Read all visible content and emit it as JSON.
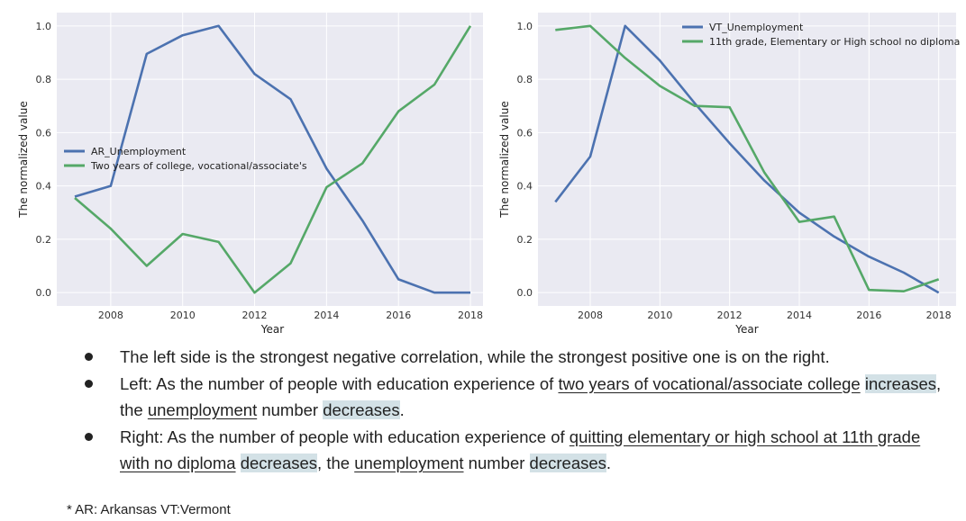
{
  "charts": {
    "left": {
      "xlabel": "Year",
      "ylabel": "The normalized value",
      "legend": [
        "AR_Unemployment",
        "Two years of college, vocational/associate's"
      ]
    },
    "right": {
      "xlabel": "Year",
      "ylabel": "The normalized value",
      "legend": [
        "VT_Unemployment",
        "11th grade, Elementary or High school no diploma"
      ]
    }
  },
  "chart_data": [
    {
      "type": "line",
      "title": "",
      "xlabel": "Year",
      "ylabel": "The normalized value",
      "x": [
        2007,
        2008,
        2009,
        2010,
        2011,
        2012,
        2013,
        2014,
        2015,
        2016,
        2017,
        2018
      ],
      "xlim": [
        2006.5,
        2018.5
      ],
      "ylim": [
        -0.05,
        1.05
      ],
      "xticks": [
        2008,
        2010,
        2012,
        2014,
        2016,
        2018
      ],
      "yticks": [
        0.0,
        0.2,
        0.4,
        0.6,
        0.8,
        1.0
      ],
      "grid": true,
      "legend_position": "center-left",
      "series": [
        {
          "name": "AR_Unemployment",
          "color": "#4c72b0",
          "values": [
            0.36,
            0.4,
            0.895,
            0.965,
            1.0,
            0.82,
            0.725,
            0.465,
            0.27,
            0.05,
            0.0,
            0.0
          ]
        },
        {
          "name": "Two years of college, vocational/associate's",
          "color": "#55a868",
          "values": [
            0.355,
            0.24,
            0.1,
            0.22,
            0.19,
            0.0,
            0.11,
            0.395,
            0.485,
            0.68,
            0.78,
            1.0
          ]
        }
      ]
    },
    {
      "type": "line",
      "title": "",
      "xlabel": "Year",
      "ylabel": "The normalized value",
      "x": [
        2007,
        2008,
        2009,
        2010,
        2011,
        2012,
        2013,
        2014,
        2015,
        2016,
        2017,
        2018
      ],
      "xlim": [
        2006.5,
        2018.5
      ],
      "ylim": [
        -0.05,
        1.05
      ],
      "xticks": [
        2008,
        2010,
        2012,
        2014,
        2016,
        2018
      ],
      "yticks": [
        0.0,
        0.2,
        0.4,
        0.6,
        0.8,
        1.0
      ],
      "grid": true,
      "legend_position": "top-right",
      "series": [
        {
          "name": "VT_Unemployment",
          "color": "#4c72b0",
          "values": [
            0.34,
            0.51,
            1.0,
            0.87,
            0.71,
            0.56,
            0.42,
            0.3,
            0.21,
            0.135,
            0.075,
            0.0
          ]
        },
        {
          "name": "11th grade, Elementary or High school no diploma",
          "color": "#55a868",
          "values": [
            0.985,
            1.0,
            0.88,
            0.775,
            0.7,
            0.695,
            0.45,
            0.265,
            0.285,
            0.01,
            0.005,
            0.05
          ]
        }
      ]
    }
  ],
  "notes": {
    "b1": "The left side is the strongest negative correlation, while the strongest positive one is on the right.",
    "b2": {
      "p1": "Left: As the number of people with education experience of ",
      "u1": "two years of vocational/associate college",
      "p2": " ",
      "h1": "increases",
      "p3": ", the ",
      "u2": "unemployment",
      "p4": " number ",
      "h2": "decreases",
      "p5": "."
    },
    "b3": {
      "p1": "Right: As the number of people with education experience of ",
      "u1": "quitting elementary or high school at 11th grade with no diploma",
      "p2": " ",
      "h1": "decreases",
      "p3": ", the ",
      "u2": "unemployment",
      "p4": " number ",
      "h2": "decreases",
      "p5": "."
    }
  },
  "footnote": "*  AR: Arkansas VT:Vermont"
}
